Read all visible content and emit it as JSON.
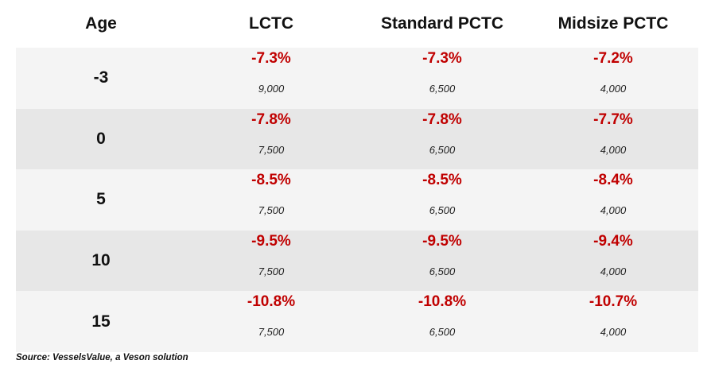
{
  "headers": {
    "age": "Age",
    "lctc": "LCTC",
    "standard_pctc": "Standard PCTC",
    "midsize_pctc": "Midsize PCTC"
  },
  "rows": [
    {
      "age": "-3",
      "lctc": {
        "pct": "-7.3%",
        "size": "9,000"
      },
      "standard": {
        "pct": "-7.3%",
        "size": "6,500"
      },
      "midsize": {
        "pct": "-7.2%",
        "size": "4,000"
      }
    },
    {
      "age": "0",
      "lctc": {
        "pct": "-7.8%",
        "size": "7,500"
      },
      "standard": {
        "pct": "-7.8%",
        "size": "6,500"
      },
      "midsize": {
        "pct": "-7.7%",
        "size": "4,000"
      }
    },
    {
      "age": "5",
      "lctc": {
        "pct": "-8.5%",
        "size": "7,500"
      },
      "standard": {
        "pct": "-8.5%",
        "size": "6,500"
      },
      "midsize": {
        "pct": "-8.4%",
        "size": "4,000"
      }
    },
    {
      "age": "10",
      "lctc": {
        "pct": "-9.5%",
        "size": "7,500"
      },
      "standard": {
        "pct": "-9.5%",
        "size": "6,500"
      },
      "midsize": {
        "pct": "-9.4%",
        "size": "4,000"
      }
    },
    {
      "age": "15",
      "lctc": {
        "pct": "-10.8%",
        "size": "7,500"
      },
      "standard": {
        "pct": "-10.8%",
        "size": "6,500"
      },
      "midsize": {
        "pct": "-10.7%",
        "size": "4,000"
      }
    }
  ],
  "source": "Source: VesselsValue, a Veson solution",
  "colors": {
    "negative_value": "#c00000",
    "row_light": "#f4f4f4",
    "row_dark": "#e7e7e7"
  }
}
